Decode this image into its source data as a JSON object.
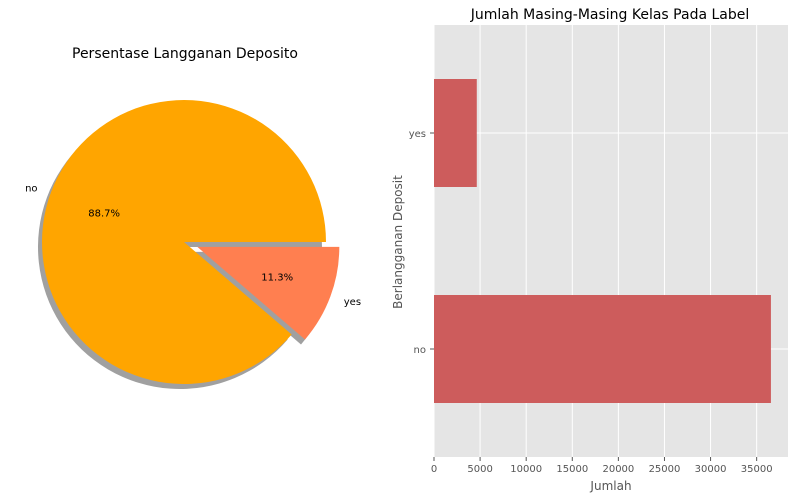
{
  "chart_data": [
    {
      "type": "pie",
      "title": "Persentase Langganan Deposito",
      "labels": [
        "no",
        "yes"
      ],
      "values": [
        88.7,
        11.3
      ],
      "value_labels": [
        "88.7%",
        "11.3%"
      ],
      "colors": [
        "#FFA500",
        "#FF7F50"
      ],
      "explode": [
        0,
        0.1
      ],
      "shadow": true
    },
    {
      "type": "bar",
      "orientation": "horizontal",
      "title": "Jumlah Masing-Masing Kelas Pada Label",
      "categories": [
        "no",
        "yes"
      ],
      "values": [
        36548,
        4640
      ],
      "xlabel": "Jumlah",
      "ylabel": "Berlangganan Deposit",
      "xlim": [
        0,
        38400
      ],
      "xticks": [
        0,
        5000,
        10000,
        15000,
        20000,
        25000,
        30000,
        35000
      ],
      "grid": true,
      "bar_color": "#CD5C5C",
      "background": "#E5E5E5"
    }
  ]
}
